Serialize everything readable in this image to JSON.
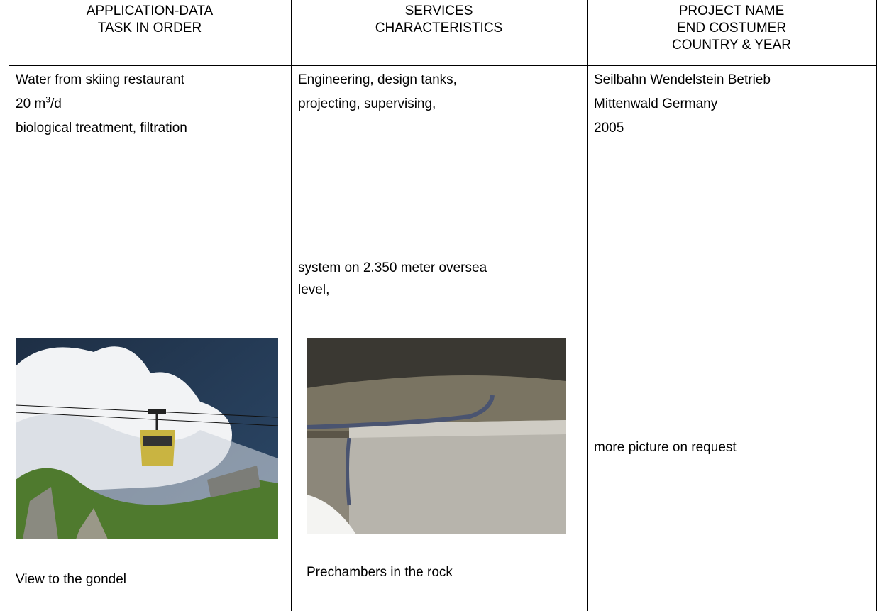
{
  "table": {
    "header": [
      [
        "APPLICATION-DATA",
        "TASK IN ORDER"
      ],
      [
        "SERVICES",
        "CHARACTERISTICS"
      ],
      [
        "PROJECT NAME",
        "END COSTUMER",
        "COUNTRY & YEAR"
      ]
    ],
    "rows": [
      [
        {
          "lines": [
            "Water from skiing restaurant",
            {
              "text": "20  m",
              "sup": "3",
              "after": "/d"
            },
            "biological treatment, filtration"
          ]
        },
        {
          "lines": [
            "Engineering, design tanks,",
            "projecting, supervising,"
          ],
          "bottom_lines": [
            "system on 2.350 meter oversea",
            "level,"
          ]
        },
        {
          "lines": [
            "Seilbahn Wendelstein Betrieb",
            "Mittenwald Germany",
            "2005"
          ]
        }
      ],
      [
        {
          "caption": "View to the gondel"
        },
        {
          "caption": "Prechambers in the rock"
        },
        {
          "text": "more picture on request"
        }
      ]
    ]
  }
}
